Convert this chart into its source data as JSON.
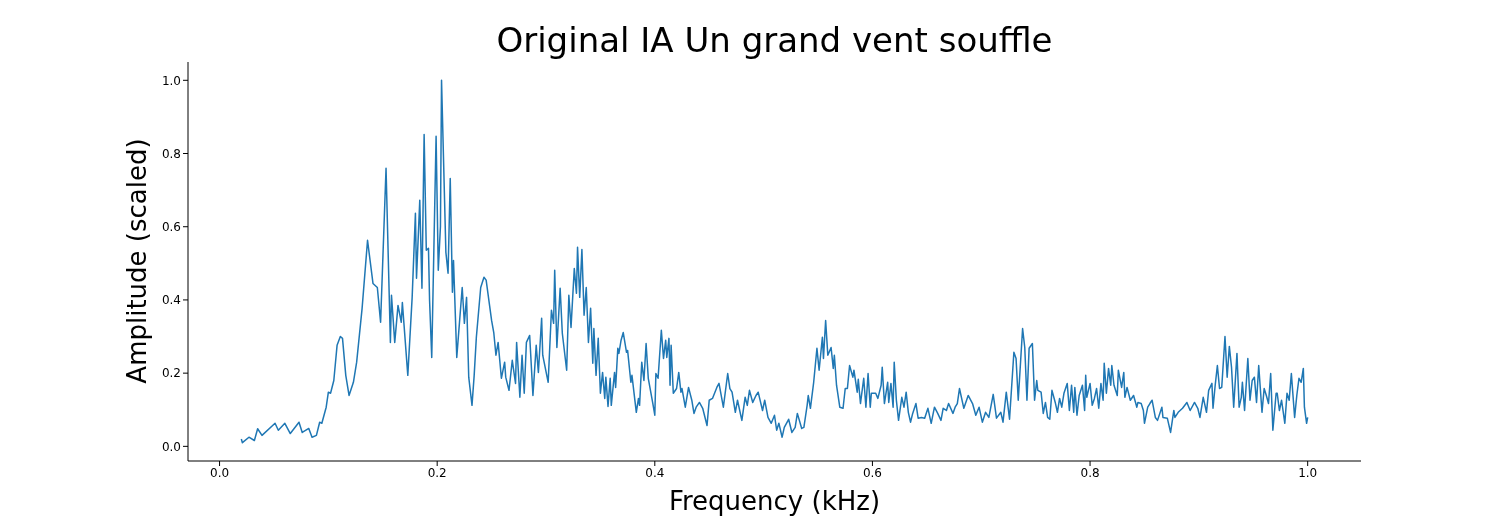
{
  "chart_data": {
    "type": "line",
    "title": "Original IA Un grand vent souffle",
    "xlabel": "Frequency (kHz)",
    "ylabel": "Amplitude (scaled)",
    "color": "#1f77b4",
    "xlim": [
      -0.029,
      1.049
    ],
    "ylim": [
      -0.04,
      1.05
    ],
    "xticks": [
      {
        "value": 0,
        "label": "0.0"
      },
      0.2,
      0.4,
      0.6,
      0.8,
      {
        "value": 1,
        "label": "1.0"
      }
    ],
    "yticks": [
      {
        "value": 0,
        "label": "0.0"
      },
      0.2,
      0.4,
      0.6,
      0.8,
      {
        "value": 1,
        "label": "1.0"
      }
    ],
    "x": [
      0.02,
      0.021,
      0.027,
      0.032,
      0.035,
      0.039,
      0.051,
      0.054,
      0.06,
      0.065,
      0.073,
      0.076,
      0.082,
      0.085,
      0.089,
      0.092,
      0.094,
      0.098,
      0.1,
      0.102,
      0.105,
      0.108,
      0.111,
      0.113,
      0.116,
      0.119,
      0.123,
      0.126,
      0.131,
      0.136,
      0.141,
      0.145,
      0.148,
      0.153,
      0.157,
      0.158,
      0.161,
      0.164,
      0.167,
      0.168,
      0.173,
      0.177,
      0.18,
      0.181,
      0.184,
      0.186,
      0.188,
      0.19,
      0.192,
      0.193,
      0.195,
      0.199,
      0.201,
      0.203,
      0.204,
      0.208,
      0.21,
      0.212,
      0.214,
      0.215,
      0.218,
      0.223,
      0.225,
      0.227,
      0.229,
      0.232,
      0.234,
      0.236,
      0.24,
      0.243,
      0.245,
      0.25,
      0.252,
      0.254,
      0.256,
      0.259,
      0.262,
      0.263,
      0.266,
      0.269,
      0.272,
      0.273,
      0.276,
      0.278,
      0.28,
      0.282,
      0.285,
      0.288,
      0.291,
      0.293,
      0.296,
      0.297,
      0.302,
      0.305,
      0.307,
      0.308,
      0.31,
      0.313,
      0.315,
      0.319,
      0.321,
      0.323,
      0.326,
      0.328,
      0.329,
      0.331,
      0.333,
      0.335,
      0.337,
      0.339,
      0.341,
      0.343,
      0.344,
      0.346,
      0.348,
      0.35,
      0.352,
      0.354,
      0.355,
      0.357,
      0.359,
      0.36,
      0.363,
      0.364,
      0.366,
      0.367,
      0.369,
      0.371,
      0.374,
      0.375,
      0.378,
      0.379,
      0.383,
      0.385,
      0.386,
      0.388,
      0.39,
      0.392,
      0.394,
      0.398,
      0.4,
      0.401,
      0.403,
      0.406,
      0.408,
      0.41,
      0.411,
      0.413,
      0.414,
      0.415,
      0.417,
      0.42,
      0.422,
      0.424,
      0.425,
      0.428,
      0.431,
      0.434,
      0.436,
      0.438,
      0.441,
      0.444,
      0.448,
      0.45,
      0.453,
      0.457,
      0.459,
      0.463,
      0.467,
      0.469,
      0.471,
      0.474,
      0.476,
      0.48,
      0.483,
      0.485,
      0.487,
      0.49,
      0.493,
      0.495,
      0.499,
      0.501,
      0.504,
      0.507,
      0.51,
      0.512,
      0.514,
      0.517,
      0.519,
      0.523,
      0.526,
      0.529,
      0.531,
      0.535,
      0.537,
      0.54,
      0.541,
      0.543,
      0.546,
      0.549,
      0.551,
      0.554,
      0.555,
      0.557,
      0.559,
      0.562,
      0.564,
      0.565,
      0.567,
      0.57,
      0.573,
      0.575,
      0.577,
      0.579,
      0.582,
      0.583,
      0.586,
      0.587,
      0.589,
      0.592,
      0.594,
      0.596,
      0.598,
      0.599,
      0.603,
      0.605,
      0.608,
      0.609,
      0.611,
      0.614,
      0.615,
      0.617,
      0.619,
      0.62,
      0.622,
      0.624,
      0.627,
      0.629,
      0.631,
      0.633,
      0.635,
      0.637,
      0.64,
      0.642,
      0.645,
      0.648,
      0.651,
      0.654,
      0.657,
      0.66,
      0.663,
      0.665,
      0.668,
      0.67,
      0.674,
      0.676,
      0.678,
      0.68,
      0.684,
      0.688,
      0.692,
      0.695,
      0.698,
      0.701,
      0.704,
      0.707,
      0.711,
      0.714,
      0.718,
      0.72,
      0.723,
      0.726,
      0.73,
      0.732,
      0.734,
      0.738,
      0.74,
      0.742,
      0.744,
      0.747,
      0.749,
      0.751,
      0.752,
      0.755,
      0.757,
      0.759,
      0.761,
      0.763,
      0.765,
      0.768,
      0.77,
      0.772,
      0.774,
      0.776,
      0.779,
      0.781,
      0.783,
      0.785,
      0.786,
      0.788,
      0.79,
      0.793,
      0.795,
      0.796,
      0.797,
      0.8,
      0.802,
      0.804,
      0.806,
      0.808,
      0.81,
      0.812,
      0.813,
      0.815,
      0.817,
      0.819,
      0.82,
      0.822,
      0.825,
      0.826,
      0.829,
      0.831,
      0.832,
      0.834,
      0.837,
      0.84,
      0.843,
      0.844,
      0.847,
      0.849,
      0.85,
      0.853,
      0.855,
      0.857,
      0.86,
      0.862,
      0.866,
      0.867,
      0.871,
      0.874,
      0.877,
      0.878,
      0.881,
      0.885,
      0.889,
      0.892,
      0.896,
      0.899,
      0.901,
      0.904,
      0.907,
      0.909,
      0.912,
      0.913,
      0.915,
      0.917,
      0.919,
      0.921,
      0.924,
      0.926,
      0.928,
      0.93,
      0.932,
      0.935,
      0.937,
      0.939,
      0.94,
      0.942,
      0.945,
      0.947,
      0.949,
      0.951,
      0.953,
      0.955,
      0.958,
      0.96,
      0.962,
      0.964,
      0.966,
      0.968,
      0.971,
      0.972,
      0.974,
      0.976,
      0.979,
      0.981,
      0.983,
      0.985,
      0.988,
      0.99,
      0.992,
      0.994,
      0.996,
      0.997,
      0.999,
      1.0
    ],
    "values": [
      0.02,
      0.01,
      0.025,
      0.016,
      0.048,
      0.03,
      0.063,
      0.044,
      0.063,
      0.035,
      0.066,
      0.038,
      0.049,
      0.025,
      0.03,
      0.066,
      0.063,
      0.107,
      0.148,
      0.145,
      0.18,
      0.276,
      0.3,
      0.295,
      0.194,
      0.139,
      0.175,
      0.23,
      0.377,
      0.563,
      0.445,
      0.434,
      0.339,
      0.76,
      0.284,
      0.413,
      0.284,
      0.385,
      0.339,
      0.393,
      0.194,
      0.407,
      0.637,
      0.459,
      0.672,
      0.432,
      0.852,
      0.536,
      0.541,
      0.399,
      0.243,
      0.847,
      0.481,
      0.601,
      1.0,
      0.53,
      0.473,
      0.732,
      0.421,
      0.508,
      0.243,
      0.434,
      0.336,
      0.407,
      0.189,
      0.112,
      0.194,
      0.298,
      0.434,
      0.462,
      0.454,
      0.344,
      0.311,
      0.249,
      0.284,
      0.186,
      0.23,
      0.189,
      0.153,
      0.235,
      0.172,
      0.284,
      0.134,
      0.249,
      0.145,
      0.284,
      0.303,
      0.139,
      0.276,
      0.202,
      0.35,
      0.249,
      0.175,
      0.372,
      0.336,
      0.481,
      0.27,
      0.432,
      0.309,
      0.208,
      0.413,
      0.325,
      0.486,
      0.418,
      0.544,
      0.407,
      0.538,
      0.358,
      0.434,
      0.284,
      0.377,
      0.227,
      0.322,
      0.194,
      0.295,
      0.145,
      0.202,
      0.131,
      0.189,
      0.109,
      0.186,
      0.112,
      0.202,
      0.161,
      0.268,
      0.254,
      0.29,
      0.311,
      0.257,
      0.262,
      0.175,
      0.194,
      0.093,
      0.131,
      0.112,
      0.23,
      0.18,
      0.281,
      0.186,
      0.12,
      0.085,
      0.199,
      0.186,
      0.317,
      0.24,
      0.29,
      0.243,
      0.295,
      0.167,
      0.276,
      0.145,
      0.158,
      0.202,
      0.148,
      0.158,
      0.107,
      0.161,
      0.126,
      0.09,
      0.107,
      0.12,
      0.104,
      0.057,
      0.126,
      0.131,
      0.161,
      0.172,
      0.107,
      0.199,
      0.158,
      0.148,
      0.093,
      0.126,
      0.071,
      0.134,
      0.112,
      0.153,
      0.12,
      0.139,
      0.148,
      0.098,
      0.126,
      0.079,
      0.063,
      0.085,
      0.044,
      0.063,
      0.025,
      0.052,
      0.074,
      0.038,
      0.052,
      0.09,
      0.049,
      0.052,
      0.112,
      0.139,
      0.104,
      0.175,
      0.268,
      0.208,
      0.298,
      0.24,
      0.344,
      0.249,
      0.27,
      0.213,
      0.249,
      0.167,
      0.107,
      0.104,
      0.158,
      0.158,
      0.221,
      0.189,
      0.208,
      0.148,
      0.183,
      0.117,
      0.186,
      0.107,
      0.199,
      0.107,
      0.145,
      0.145,
      0.131,
      0.167,
      0.216,
      0.117,
      0.175,
      0.12,
      0.172,
      0.107,
      0.23,
      0.126,
      0.071,
      0.134,
      0.107,
      0.148,
      0.093,
      0.066,
      0.09,
      0.117,
      0.077,
      0.079,
      0.077,
      0.104,
      0.063,
      0.107,
      0.09,
      0.071,
      0.104,
      0.098,
      0.117,
      0.09,
      0.107,
      0.117,
      0.158,
      0.104,
      0.139,
      0.117,
      0.085,
      0.107,
      0.066,
      0.093,
      0.079,
      0.142,
      0.077,
      0.093,
      0.066,
      0.148,
      0.074,
      0.257,
      0.24,
      0.126,
      0.322,
      0.27,
      0.126,
      0.268,
      0.281,
      0.126,
      0.18,
      0.153,
      0.148,
      0.09,
      0.12,
      0.079,
      0.074,
      0.153,
      0.12,
      0.093,
      0.131,
      0.107,
      0.145,
      0.172,
      0.098,
      0.167,
      0.093,
      0.161,
      0.085,
      0.139,
      0.167,
      0.098,
      0.194,
      0.134,
      0.172,
      0.112,
      0.131,
      0.158,
      0.104,
      0.172,
      0.126,
      0.227,
      0.145,
      0.213,
      0.167,
      0.221,
      0.167,
      0.139,
      0.208,
      0.161,
      0.202,
      0.134,
      0.161,
      0.126,
      0.139,
      0.107,
      0.12,
      0.117,
      0.098,
      0.063,
      0.107,
      0.117,
      0.126,
      0.079,
      0.071,
      0.107,
      0.079,
      0.077,
      0.038,
      0.098,
      0.079,
      0.093,
      0.104,
      0.12,
      0.098,
      0.12,
      0.104,
      0.079,
      0.134,
      0.093,
      0.153,
      0.172,
      0.104,
      0.167,
      0.221,
      0.158,
      0.161,
      0.3,
      0.189,
      0.273,
      0.216,
      0.107,
      0.254,
      0.107,
      0.134,
      0.175,
      0.098,
      0.24,
      0.126,
      0.18,
      0.189,
      0.12,
      0.221,
      0.093,
      0.158,
      0.139,
      0.117,
      0.199,
      0.044,
      0.145,
      0.145,
      0.098,
      0.126,
      0.063,
      0.145,
      0.126,
      0.199,
      0.079,
      0.139,
      0.186,
      0.175,
      0.213,
      0.107,
      0.063,
      0.079
    ]
  }
}
